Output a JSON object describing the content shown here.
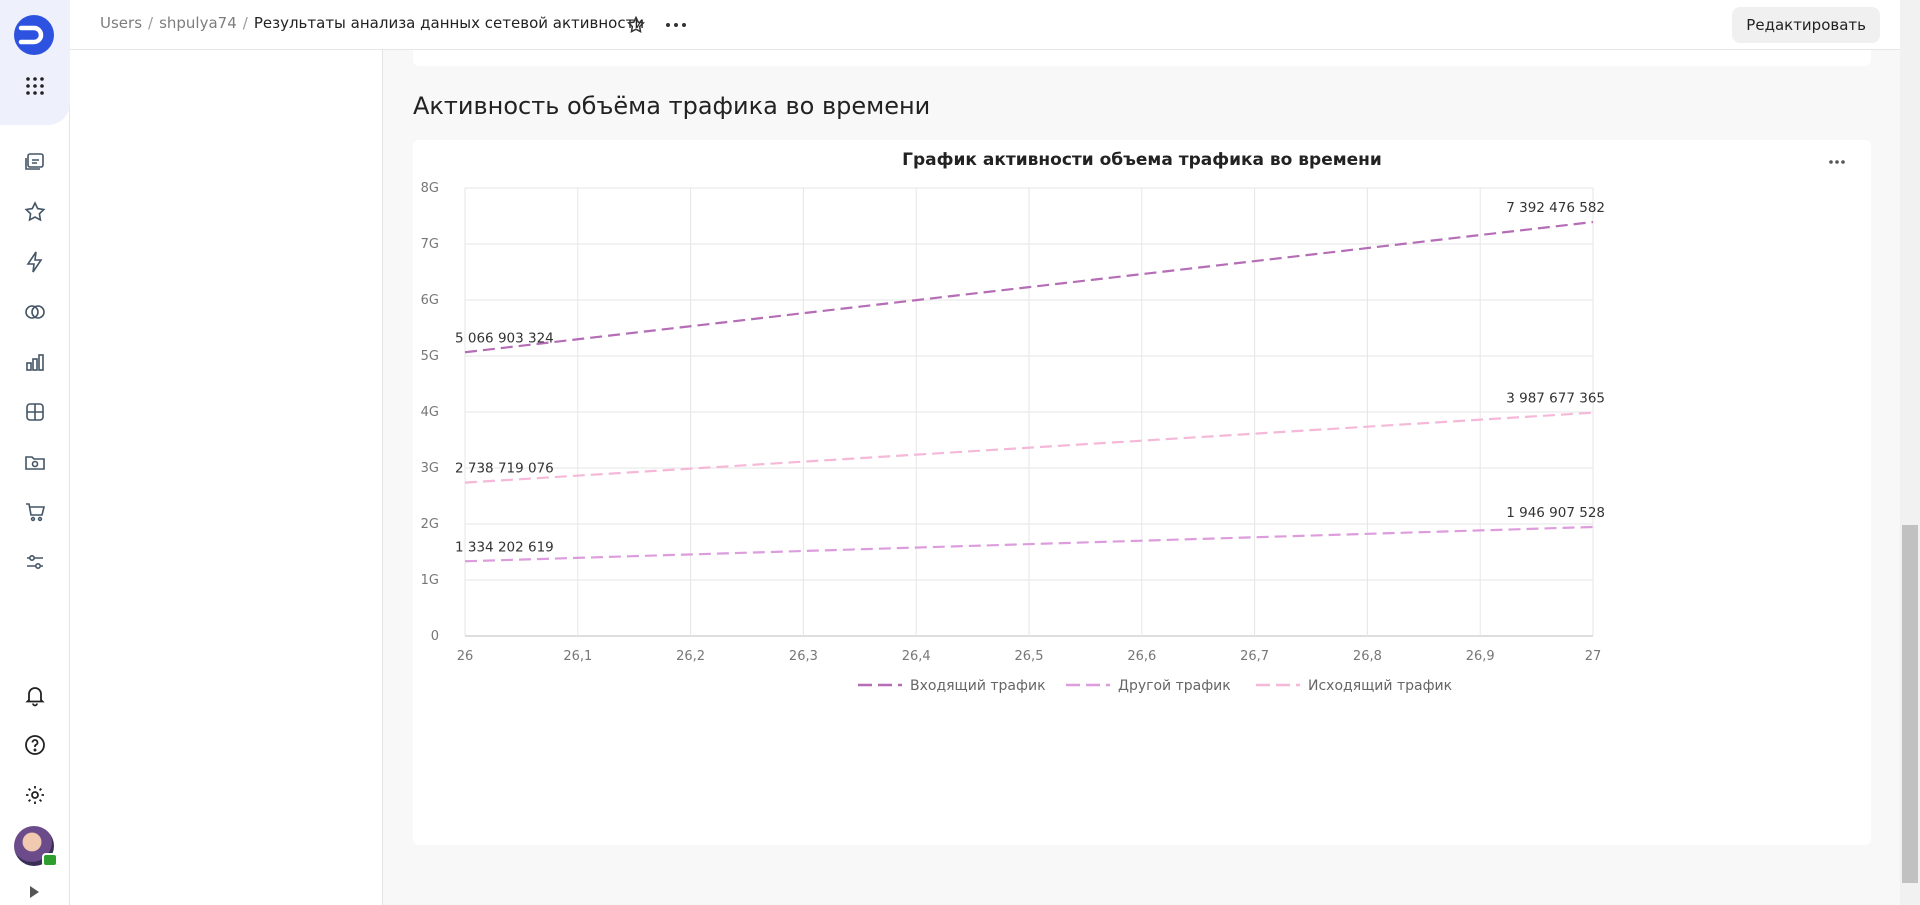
{
  "breadcrumbs": {
    "users": "Users",
    "sep": "/",
    "user": "shpulya74",
    "current": "Результаты анализа данных сетевой активности"
  },
  "header": {
    "edit_label": "Редактировать",
    "star_icon": "star-icon",
    "more_icon": "more-horizontal-icon"
  },
  "rail": {
    "items": [
      {
        "icon": "collections-icon"
      },
      {
        "icon": "star-icon"
      },
      {
        "icon": "lightning-icon"
      },
      {
        "icon": "connections-icon"
      },
      {
        "icon": "chart-bar-icon"
      },
      {
        "icon": "table-grid-icon"
      },
      {
        "icon": "folder-camera-icon"
      },
      {
        "icon": "cart-icon"
      },
      {
        "icon": "settings-sliders-icon"
      }
    ],
    "bottom": [
      {
        "icon": "bell-icon"
      },
      {
        "icon": "help-icon"
      },
      {
        "icon": "gear-icon"
      }
    ]
  },
  "section": {
    "title": "Активность объёма трафика во времени"
  },
  "colors": {
    "incoming": "#b56db5",
    "other": "#dd9ddd",
    "outgoing": "#f5b8d8",
    "grid": "#e6e6e6"
  },
  "chart_data": {
    "type": "line",
    "title": "График активности объема трафика во времени",
    "x": [
      26,
      27
    ],
    "x_ticks": [
      "26",
      "26,1",
      "26,2",
      "26,3",
      "26,4",
      "26,5",
      "26,6",
      "26,7",
      "26,8",
      "26,9",
      "27"
    ],
    "y_ticks": [
      "0",
      "1G",
      "2G",
      "3G",
      "4G",
      "5G",
      "6G",
      "7G",
      "8G"
    ],
    "ylim": [
      0,
      8000000000
    ],
    "xlim": [
      26,
      27
    ],
    "grid": true,
    "legend_position": "bottom",
    "series": [
      {
        "name": "Входящий трафик",
        "values": [
          5066903324,
          7392476582
        ],
        "labels": [
          "5 066 903 324",
          "7 392 476 582"
        ],
        "color": "#b56db5"
      },
      {
        "name": "Другой трафик",
        "values": [
          1334202619,
          1946907528
        ],
        "labels": [
          "1 334 202 619",
          "1 946 907 528"
        ],
        "color": "#dd9ddd"
      },
      {
        "name": "Исходящий трафик",
        "values": [
          2738719076,
          3987677365
        ],
        "labels": [
          "2 738 719 076",
          "3 987 677 365"
        ],
        "color": "#f5b8d8"
      }
    ]
  }
}
